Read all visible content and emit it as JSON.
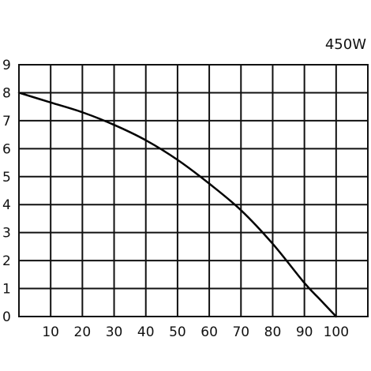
{
  "chart_data": {
    "type": "line",
    "title": "450W",
    "xlabel": "",
    "ylabel": "",
    "xlim": [
      0,
      110
    ],
    "ylim": [
      0,
      9
    ],
    "grid": true,
    "x_ticks": [
      10,
      20,
      30,
      40,
      50,
      60,
      70,
      80,
      90,
      100
    ],
    "y_ticks": [
      0,
      1,
      2,
      3,
      4,
      5,
      6,
      7,
      8,
      9
    ],
    "series": [
      {
        "x": [
          0,
          10,
          20,
          30,
          40,
          50,
          60,
          70,
          80,
          90,
          95,
          100
        ],
        "y": [
          8.0,
          7.65,
          7.3,
          6.85,
          6.3,
          5.6,
          4.75,
          3.8,
          2.6,
          1.2,
          0.6,
          0.0
        ]
      }
    ]
  }
}
